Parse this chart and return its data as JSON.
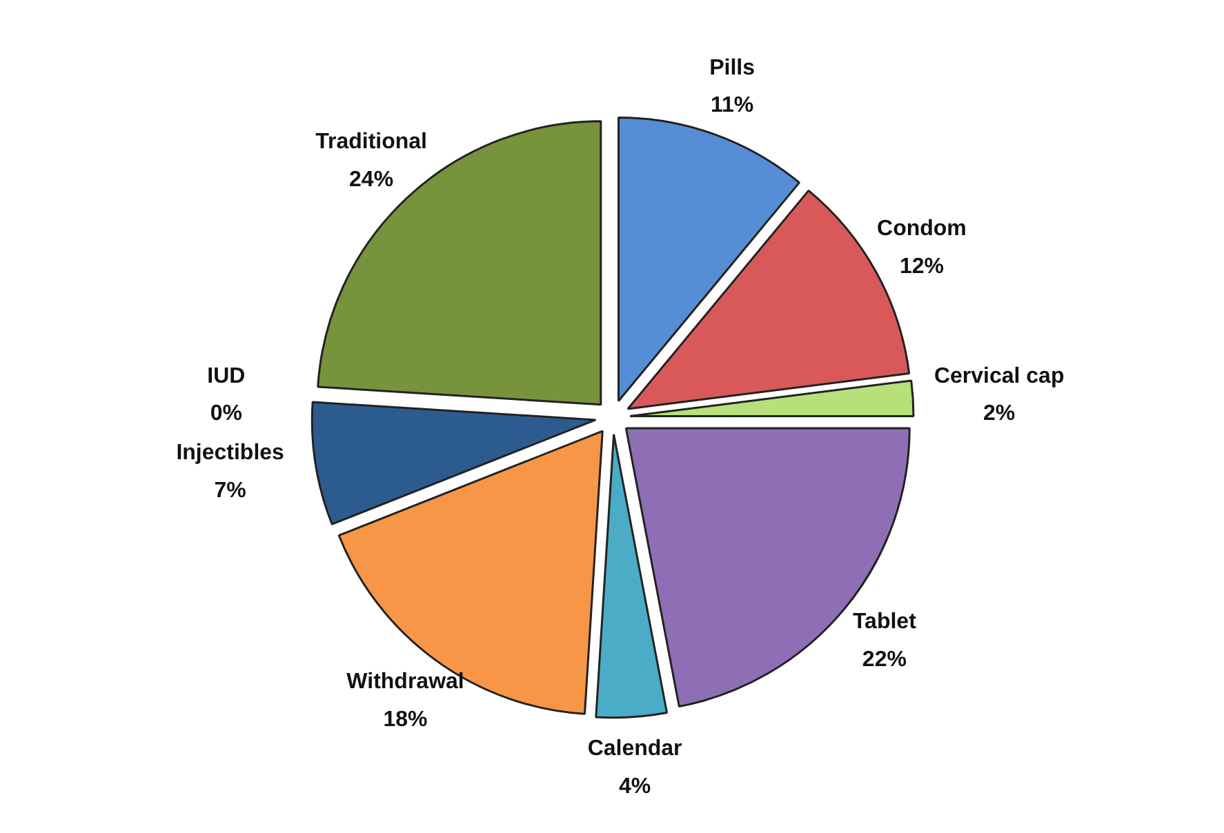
{
  "chart_data": {
    "type": "pie",
    "categories": [
      "Pills",
      "Condom",
      "Cervical cap",
      "Tablet",
      "Calendar",
      "Withdrawal",
      "Injectibles",
      "IUD",
      "Traditional"
    ],
    "values": [
      11,
      12,
      2,
      22,
      4,
      18,
      7,
      0,
      24
    ],
    "colors": [
      "#558ed5",
      "#d9595a",
      "#b8e07a",
      "#8e6fb5",
      "#4bacc6",
      "#f79646",
      "#2c5b8f",
      "#c0504d",
      "#77933c"
    ],
    "value_labels": [
      "11%",
      "12%",
      "2%",
      "22%",
      "4%",
      "18%",
      "7%",
      "0%",
      "24%"
    ],
    "legend": false
  }
}
